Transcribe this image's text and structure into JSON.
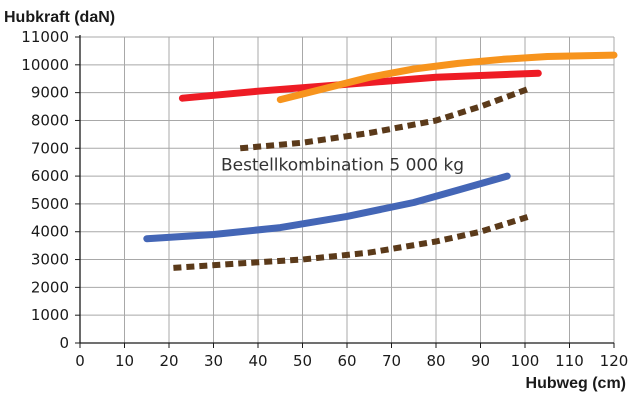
{
  "chart_data": {
    "type": "line",
    "title": "",
    "ylabel": "Hubkraft (daN)",
    "xlabel": "Hubweg (cm)",
    "xlim": [
      0,
      120
    ],
    "ylim": [
      0,
      11000
    ],
    "x_ticks": [
      0,
      10,
      20,
      30,
      40,
      50,
      60,
      70,
      80,
      90,
      100,
      110,
      120
    ],
    "y_ticks": [
      0,
      1000,
      2000,
      3000,
      4000,
      5000,
      6000,
      7000,
      8000,
      9000,
      10000,
      11000
    ],
    "grid": true,
    "annotations": [
      {
        "text": "Bestellkombination 5 000 kg",
        "x": 59,
        "y": 6200
      }
    ],
    "series": [
      {
        "color": "#ee1c25",
        "style": "solid",
        "points": [
          [
            23,
            8800
          ],
          [
            40,
            9050
          ],
          [
            60,
            9300
          ],
          [
            80,
            9550
          ],
          [
            103,
            9700
          ]
        ]
      },
      {
        "color": "#f7941d",
        "style": "solid",
        "points": [
          [
            45,
            8750
          ],
          [
            55,
            9150
          ],
          [
            65,
            9550
          ],
          [
            75,
            9850
          ],
          [
            85,
            10050
          ],
          [
            95,
            10200
          ],
          [
            105,
            10300
          ],
          [
            120,
            10350
          ]
        ]
      },
      {
        "color": "#5b3a1a",
        "style": "dotted",
        "points": [
          [
            36,
            7000
          ],
          [
            50,
            7200
          ],
          [
            65,
            7550
          ],
          [
            80,
            8000
          ],
          [
            90,
            8500
          ],
          [
            101,
            9150
          ]
        ]
      },
      {
        "color": "#4466b6",
        "style": "solid",
        "points": [
          [
            15,
            3750
          ],
          [
            30,
            3900
          ],
          [
            45,
            4150
          ],
          [
            60,
            4550
          ],
          [
            75,
            5050
          ],
          [
            85,
            5500
          ],
          [
            96,
            6000
          ]
        ]
      },
      {
        "color": "#5b3a1a",
        "style": "dotted",
        "points": [
          [
            21,
            2700
          ],
          [
            35,
            2850
          ],
          [
            50,
            3000
          ],
          [
            65,
            3250
          ],
          [
            80,
            3650
          ],
          [
            90,
            4000
          ],
          [
            101,
            4550
          ]
        ]
      }
    ]
  }
}
